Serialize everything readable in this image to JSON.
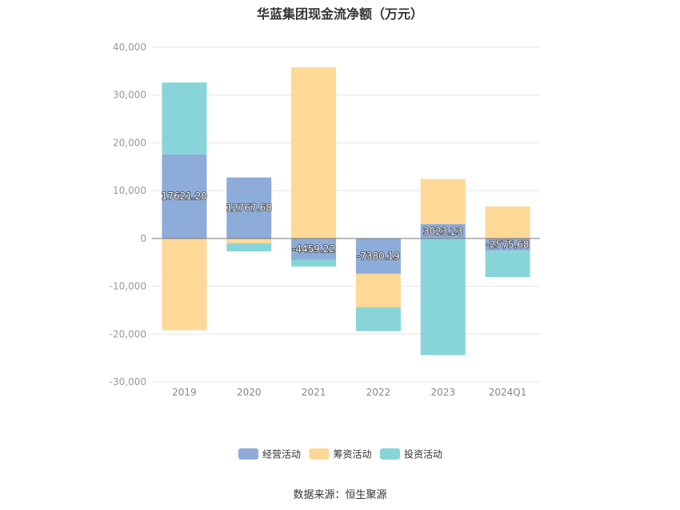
{
  "chart_data": {
    "type": "bar",
    "stacked": true,
    "title": "华蓝集团现金流净额（万元）",
    "xlabel": "",
    "ylabel": "",
    "categories": [
      "2019",
      "2020",
      "2021",
      "2022",
      "2023",
      "2024Q1"
    ],
    "series": [
      {
        "name": "经营活动",
        "color": "#8eacd9",
        "values": [
          17621.2,
          12767.68,
          -4459.22,
          -7380.19,
          3023.23,
          -2575.68
        ],
        "labels": [
          "17621.20",
          "12767.68",
          "-4459.22",
          "-7380.19",
          "3023.23",
          "-2575.68"
        ]
      },
      {
        "name": "筹资活动",
        "color": "#fed897",
        "values": [
          -19200,
          -1000,
          35800,
          -7000,
          9400,
          6700
        ]
      },
      {
        "name": "投资活动",
        "color": "#87d5d9",
        "values": [
          15000,
          -1700,
          -1400,
          -5000,
          -24400,
          -5500
        ]
      }
    ],
    "ylim": [
      -30000,
      40000
    ],
    "yticks": [
      {
        "value": 40000,
        "label": "40,000"
      },
      {
        "value": 30000,
        "label": "30,000"
      },
      {
        "value": 20000,
        "label": "20,000"
      },
      {
        "value": 10000,
        "label": "10,000"
      },
      {
        "value": 0,
        "label": "0"
      },
      {
        "value": -10000,
        "label": "-10,000"
      },
      {
        "value": -20000,
        "label": "-20,000"
      },
      {
        "value": -30000,
        "label": "-30,000"
      }
    ],
    "grid": true,
    "legend": "bottom-center"
  },
  "source": "数据来源：恒生聚源"
}
